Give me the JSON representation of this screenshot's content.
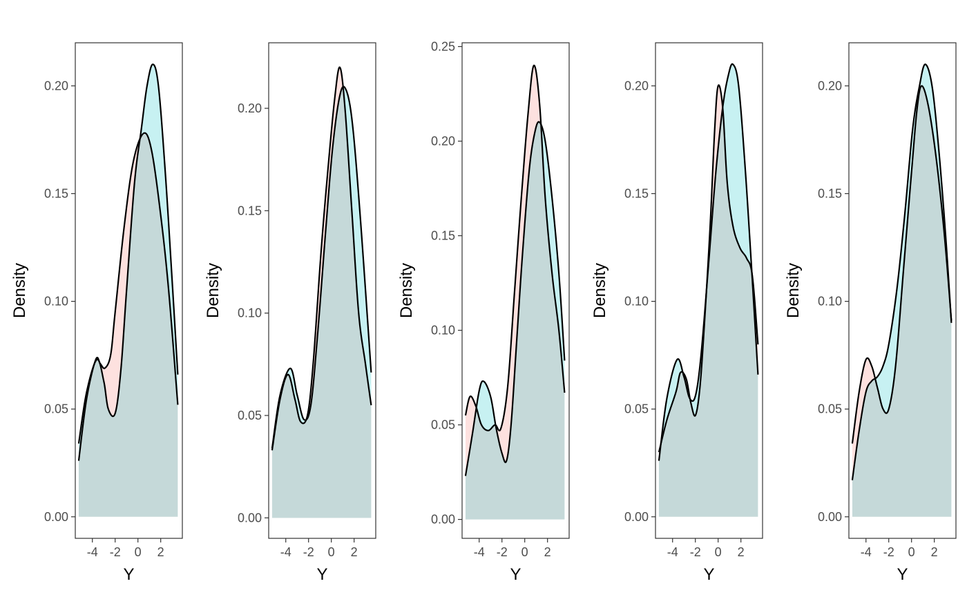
{
  "colors": {
    "series_a_fill": "#f8766d",
    "series_b_fill": "#00bfc4",
    "overlap_fill": "#d6d3d6",
    "line": "#000000",
    "panel_border": "#333333",
    "tick_text": "#4d4d4d"
  },
  "chart_data": [
    {
      "type": "area",
      "xlabel": "Y",
      "ylabel": "Density",
      "xlim": [
        -5.5,
        3.9
      ],
      "x_ticks": [
        -4,
        -2,
        0,
        2
      ],
      "x_tick_labels": [
        "-4",
        "-2",
        "0",
        "2"
      ],
      "ylim": [
        -0.01,
        0.22
      ],
      "y_ticks": [
        0.0,
        0.05,
        0.1,
        0.15,
        0.2
      ],
      "y_tick_labels": [
        "0.00",
        "0.05",
        "0.10",
        "0.15",
        "0.20"
      ],
      "grid": false,
      "legend": "none",
      "series": [
        {
          "color": "#f8766d",
          "x": [
            -5.2,
            -4.5,
            -3.7,
            -3.3,
            -2.9,
            -2.4,
            -2.0,
            -1.2,
            -0.4,
            0.5,
            1.2,
            2.0,
            2.7,
            3.5
          ],
          "y": [
            0.026,
            0.055,
            0.073,
            0.071,
            0.069,
            0.075,
            0.095,
            0.135,
            0.165,
            0.178,
            0.17,
            0.14,
            0.105,
            0.052
          ]
        },
        {
          "color": "#00bfc4",
          "x": [
            -5.2,
            -4.5,
            -3.6,
            -3.0,
            -2.6,
            -2.0,
            -1.5,
            -1.0,
            -0.3,
            0.3,
            0.8,
            1.3,
            1.8,
            2.4,
            3.0,
            3.5
          ],
          "y": [
            0.034,
            0.058,
            0.073,
            0.063,
            0.05,
            0.048,
            0.068,
            0.105,
            0.155,
            0.18,
            0.2,
            0.21,
            0.2,
            0.16,
            0.11,
            0.066
          ]
        }
      ]
    },
    {
      "type": "area",
      "xlabel": "Y",
      "ylabel": "Density",
      "xlim": [
        -5.5,
        3.9
      ],
      "x_ticks": [
        -4,
        -2,
        0,
        2
      ],
      "x_tick_labels": [
        "-4",
        "-2",
        "0",
        "2"
      ],
      "ylim": [
        -0.01,
        0.232
      ],
      "y_ticks": [
        0.0,
        0.05,
        0.1,
        0.15,
        0.2
      ],
      "y_tick_labels": [
        "0.00",
        "0.05",
        "0.10",
        "0.15",
        "0.20"
      ],
      "grid": false,
      "legend": "none",
      "series": [
        {
          "color": "#f8766d",
          "x": [
            -5.2,
            -4.5,
            -3.8,
            -3.2,
            -2.7,
            -2.1,
            -1.6,
            -0.9,
            -0.3,
            0.3,
            0.75,
            1.2,
            1.8,
            2.4,
            3.0,
            3.5
          ],
          "y": [
            0.033,
            0.058,
            0.07,
            0.058,
            0.047,
            0.05,
            0.075,
            0.13,
            0.17,
            0.205,
            0.22,
            0.2,
            0.15,
            0.1,
            0.075,
            0.055
          ]
        },
        {
          "color": "#00bfc4",
          "x": [
            -5.2,
            -4.5,
            -3.6,
            -3.0,
            -2.4,
            -1.8,
            -1.2,
            -0.5,
            0.1,
            0.7,
            1.2,
            1.8,
            2.5,
            3.5
          ],
          "y": [
            0.034,
            0.06,
            0.073,
            0.06,
            0.048,
            0.055,
            0.09,
            0.14,
            0.18,
            0.205,
            0.21,
            0.195,
            0.15,
            0.071
          ]
        }
      ]
    },
    {
      "type": "area",
      "xlabel": "Y",
      "ylabel": "Density",
      "xlim": [
        -5.5,
        3.9
      ],
      "x_ticks": [
        -4,
        -2,
        0,
        2
      ],
      "x_tick_labels": [
        "-4",
        "-2",
        "0",
        "2"
      ],
      "ylim": [
        -0.01,
        0.252
      ],
      "y_ticks": [
        0.0,
        0.05,
        0.1,
        0.15,
        0.2,
        0.25
      ],
      "y_tick_labels": [
        "0.00",
        "0.05",
        "0.10",
        "0.15",
        "0.20",
        "0.25"
      ],
      "grid": false,
      "legend": "none",
      "series": [
        {
          "color": "#f8766d",
          "x": [
            -5.2,
            -4.8,
            -4.3,
            -3.8,
            -3.2,
            -2.6,
            -2.1,
            -1.5,
            -0.9,
            -0.3,
            0.3,
            0.8,
            1.3,
            1.8,
            2.4,
            3.0,
            3.5
          ],
          "y": [
            0.055,
            0.065,
            0.06,
            0.05,
            0.047,
            0.05,
            0.048,
            0.07,
            0.12,
            0.17,
            0.215,
            0.24,
            0.22,
            0.17,
            0.13,
            0.1,
            0.067
          ]
        },
        {
          "color": "#00bfc4",
          "x": [
            -5.2,
            -4.6,
            -4.0,
            -3.6,
            -3.0,
            -2.5,
            -2.0,
            -1.6,
            -1.2,
            -0.7,
            -0.2,
            0.4,
            0.9,
            1.3,
            1.8,
            2.4,
            3.0,
            3.5
          ],
          "y": [
            0.023,
            0.045,
            0.068,
            0.073,
            0.065,
            0.048,
            0.035,
            0.031,
            0.05,
            0.095,
            0.14,
            0.185,
            0.205,
            0.21,
            0.2,
            0.17,
            0.13,
            0.084
          ]
        }
      ]
    },
    {
      "type": "area",
      "xlabel": "Y",
      "ylabel": "Density",
      "xlim": [
        -5.5,
        3.9
      ],
      "x_ticks": [
        -4,
        -2,
        0,
        2
      ],
      "x_tick_labels": [
        "-4",
        "-2",
        "0",
        "2"
      ],
      "ylim": [
        -0.01,
        0.22
      ],
      "y_ticks": [
        0.0,
        0.05,
        0.1,
        0.15,
        0.2
      ],
      "y_tick_labels": [
        "0.00",
        "0.05",
        "0.10",
        "0.15",
        "0.20"
      ],
      "grid": false,
      "legend": "none",
      "series": [
        {
          "color": "#f8766d",
          "x": [
            -5.2,
            -4.5,
            -3.7,
            -3.3,
            -2.8,
            -2.4,
            -2.0,
            -1.6,
            -1.2,
            -0.7,
            -0.3,
            0.0,
            0.4,
            0.8,
            1.3,
            1.9,
            2.5,
            3.0,
            3.5
          ],
          "y": [
            0.03,
            0.045,
            0.058,
            0.067,
            0.064,
            0.053,
            0.047,
            0.06,
            0.09,
            0.135,
            0.18,
            0.2,
            0.19,
            0.155,
            0.135,
            0.125,
            0.12,
            0.112,
            0.08
          ]
        },
        {
          "color": "#00bfc4",
          "x": [
            -5.2,
            -4.5,
            -3.6,
            -3.0,
            -2.5,
            -2.0,
            -1.5,
            -0.8,
            -0.2,
            0.4,
            0.9,
            1.3,
            1.8,
            2.4,
            3.0,
            3.5
          ],
          "y": [
            0.026,
            0.055,
            0.073,
            0.065,
            0.055,
            0.056,
            0.075,
            0.12,
            0.16,
            0.19,
            0.205,
            0.21,
            0.2,
            0.16,
            0.11,
            0.066
          ]
        }
      ]
    },
    {
      "type": "area",
      "xlabel": "Y",
      "ylabel": "Density",
      "xlim": [
        -5.5,
        3.9
      ],
      "x_ticks": [
        -4,
        -2,
        0,
        2
      ],
      "x_tick_labels": [
        "-4",
        "-2",
        "0",
        "2"
      ],
      "ylim": [
        -0.01,
        0.22
      ],
      "y_ticks": [
        0.0,
        0.05,
        0.1,
        0.15,
        0.2
      ],
      "y_tick_labels": [
        "0.00",
        "0.05",
        "0.10",
        "0.15",
        "0.20"
      ],
      "grid": false,
      "legend": "none",
      "series": [
        {
          "color": "#f8766d",
          "x": [
            -5.2,
            -4.6,
            -4.0,
            -3.5,
            -3.0,
            -2.5,
            -2.0,
            -1.4,
            -0.7,
            0.0,
            0.5,
            0.9,
            1.5,
            2.2,
            2.9,
            3.5
          ],
          "y": [
            0.034,
            0.058,
            0.073,
            0.07,
            0.06,
            0.05,
            0.05,
            0.07,
            0.115,
            0.16,
            0.19,
            0.2,
            0.19,
            0.165,
            0.13,
            0.091
          ]
        },
        {
          "color": "#00bfc4",
          "x": [
            -5.2,
            -4.6,
            -4.0,
            -3.5,
            -3.0,
            -2.5,
            -2.0,
            -1.3,
            -0.6,
            0.1,
            0.7,
            1.2,
            1.8,
            2.4,
            3.0,
            3.5
          ],
          "y": [
            0.017,
            0.04,
            0.058,
            0.063,
            0.065,
            0.07,
            0.08,
            0.105,
            0.14,
            0.18,
            0.2,
            0.21,
            0.2,
            0.17,
            0.13,
            0.09
          ]
        }
      ]
    }
  ]
}
